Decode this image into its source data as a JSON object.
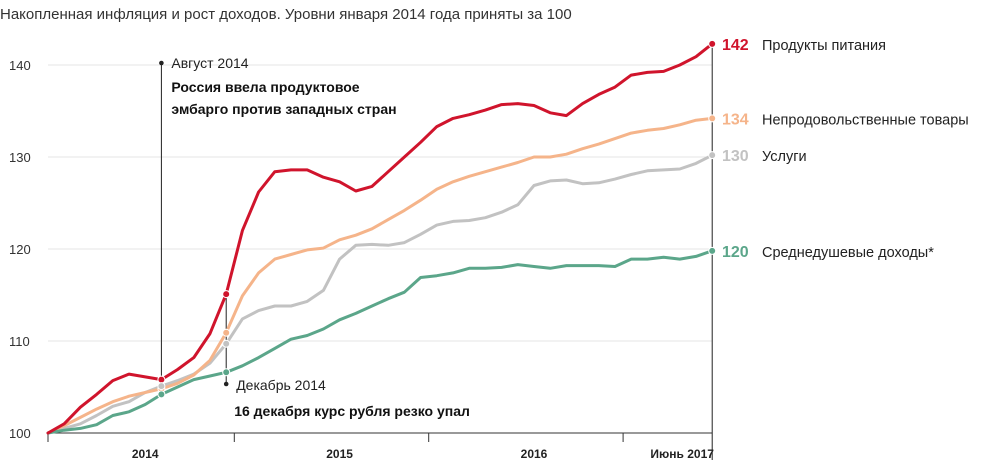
{
  "chart_data": {
    "type": "line",
    "title": "Накопленная инфляция и рост доходов. Уровни января 2014 года приняты за 100",
    "ylim": [
      100,
      145
    ],
    "yticks": [
      "100",
      "110",
      "120",
      "130",
      "140"
    ],
    "xticks": [
      "2014",
      "2015",
      "2016",
      "Июнь 2017"
    ],
    "grid": "horizontal",
    "x": [
      "2014-01",
      "2014-02",
      "2014-03",
      "2014-04",
      "2014-05",
      "2014-06",
      "2014-07",
      "2014-08",
      "2014-09",
      "2014-10",
      "2014-11",
      "2014-12",
      "2015-01",
      "2015-02",
      "2015-03",
      "2015-04",
      "2015-05",
      "2015-06",
      "2015-07",
      "2015-08",
      "2015-09",
      "2015-10",
      "2015-11",
      "2015-12",
      "2016-01",
      "2016-02",
      "2016-03",
      "2016-04",
      "2016-05",
      "2016-06",
      "2016-07",
      "2016-08",
      "2016-09",
      "2016-10",
      "2016-11",
      "2016-12",
      "2017-01",
      "2017-02",
      "2017-03",
      "2017-04",
      "2017-05",
      "2017-06"
    ],
    "series": [
      {
        "name": "Продукты питания",
        "end_value": "142",
        "color": "#d0142c",
        "values": [
          100,
          101,
          102.8,
          104.2,
          105.7,
          106.4,
          106.1,
          105.8,
          106.9,
          108.2,
          110.8,
          115.1,
          122.0,
          126.2,
          128.4,
          128.6,
          128.6,
          127.8,
          127.3,
          126.3,
          126.8,
          128.4,
          130.0,
          131.6,
          133.3,
          134.2,
          134.6,
          135.1,
          135.7,
          135.8,
          135.6,
          134.8,
          134.5,
          135.8,
          136.8,
          137.6,
          138.9,
          139.2,
          139.3,
          140.0,
          140.9,
          142.3
        ]
      },
      {
        "name": "Непродовольственные товары",
        "end_value": "134",
        "color": "#f5b48a",
        "values": [
          100,
          100.8,
          101.7,
          102.6,
          103.4,
          104.0,
          104.4,
          104.8,
          105.4,
          106.3,
          107.9,
          110.9,
          114.9,
          117.4,
          118.9,
          119.4,
          119.9,
          120.1,
          121.0,
          121.5,
          122.2,
          123.2,
          124.2,
          125.3,
          126.5,
          127.3,
          127.9,
          128.4,
          128.9,
          129.4,
          130.0,
          130.0,
          130.3,
          130.9,
          131.4,
          132.0,
          132.6,
          132.9,
          133.1,
          133.5,
          134.0,
          134.2
        ]
      },
      {
        "name": "Услуги",
        "end_value": "130",
        "color": "#c2c2c2",
        "values": [
          100,
          100.5,
          101.0,
          101.9,
          102.9,
          103.4,
          104.4,
          105.1,
          105.7,
          106.4,
          107.6,
          109.7,
          112.4,
          113.3,
          113.8,
          113.8,
          114.3,
          115.5,
          118.9,
          120.4,
          120.5,
          120.4,
          120.7,
          121.6,
          122.6,
          123.0,
          123.1,
          123.4,
          124.0,
          124.8,
          126.9,
          127.4,
          127.5,
          127.1,
          127.2,
          127.6,
          128.1,
          128.5,
          128.6,
          128.7,
          129.3,
          130.2
        ]
      },
      {
        "name": "Среднедушевые доходы*",
        "end_value": "120",
        "color": "#5ba68a",
        "values": [
          100,
          100.3,
          100.5,
          100.9,
          101.9,
          102.3,
          103.1,
          104.2,
          105.0,
          105.8,
          106.2,
          106.6,
          107.3,
          108.2,
          109.2,
          110.2,
          110.6,
          111.3,
          112.3,
          113.0,
          113.8,
          114.6,
          115.3,
          116.9,
          117.1,
          117.4,
          117.9,
          117.9,
          118.0,
          118.3,
          118.1,
          117.9,
          118.2,
          118.2,
          118.2,
          118.1,
          118.9,
          118.9,
          119.1,
          118.9,
          119.2,
          119.8
        ]
      }
    ],
    "annotations": [
      {
        "date_label": "Август 2014",
        "text": [
          "Россия ввела продуктовое",
          "эмбарго против западных стран"
        ],
        "x_index": 7,
        "y_value": 105.8
      },
      {
        "date_label": "Декабрь 2014",
        "text": [
          "16 декабря курс рубля резко упал"
        ],
        "x_index": 11,
        "y_value": 115.1
      }
    ]
  }
}
